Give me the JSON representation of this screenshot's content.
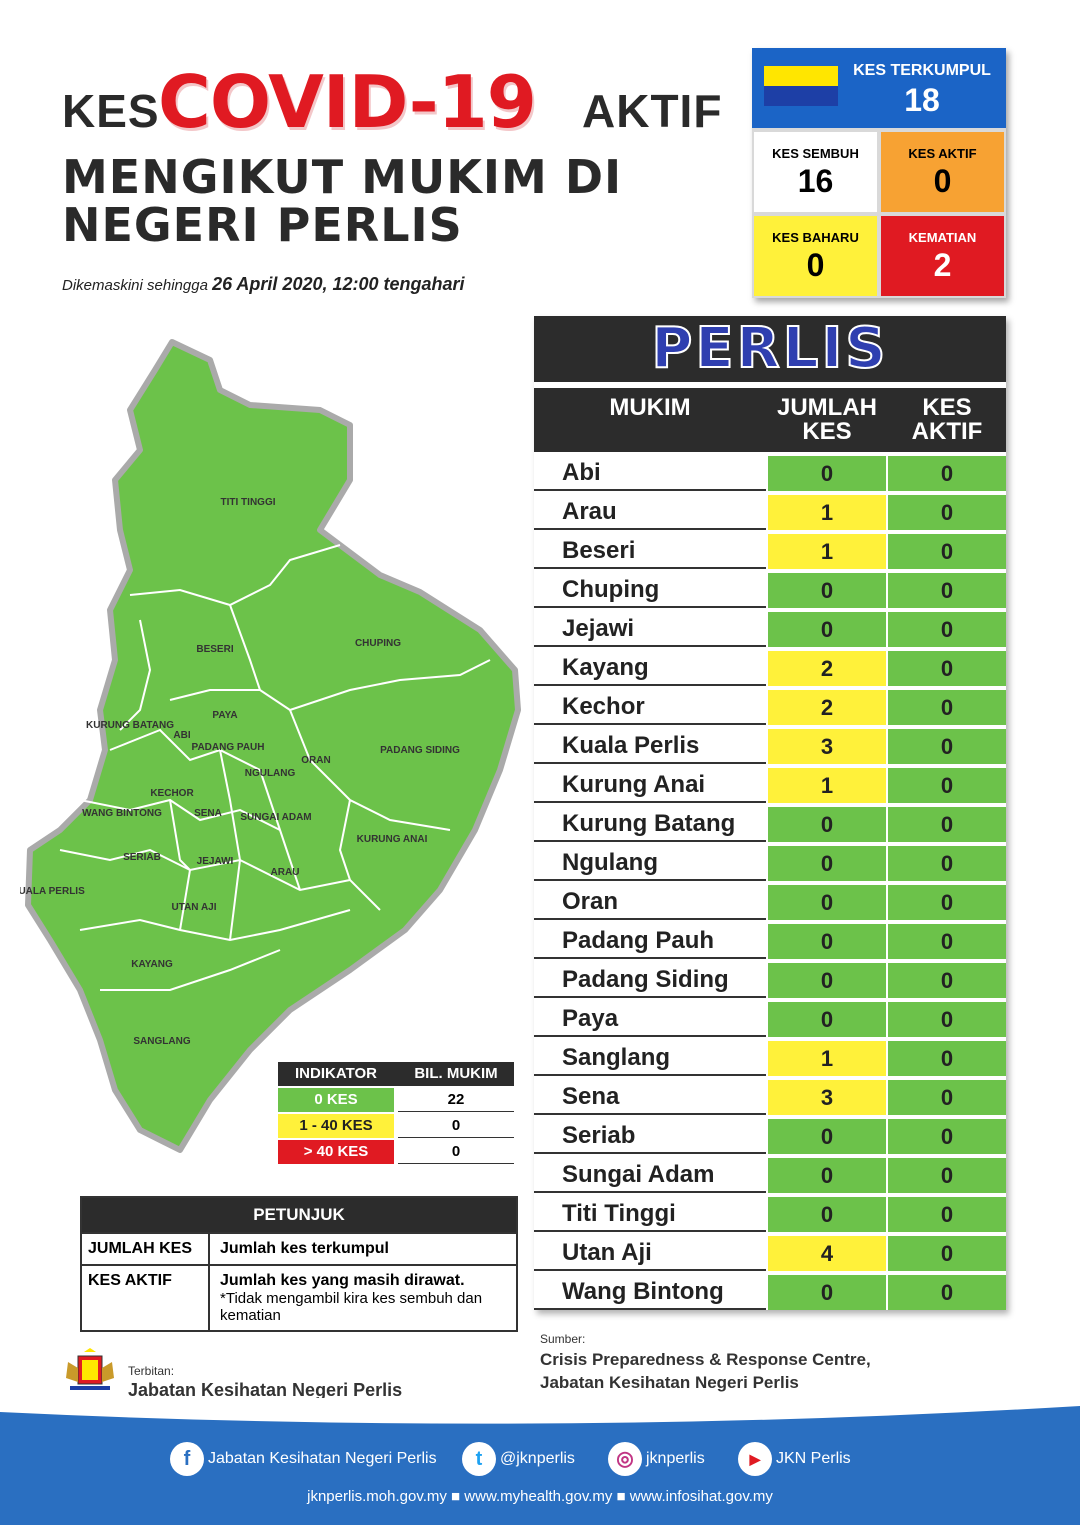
{
  "title": {
    "kes": "KES",
    "covid": "COVID-19",
    "aktif": "AKTIF",
    "line2": "MENGIKUT MUKIM DI",
    "line3": "NEGERI PERLIS"
  },
  "updated": {
    "prefix": "Dikemaskini sehingga",
    "date": "26 April 2020, 12:00 tengahari"
  },
  "stats": {
    "terkumpul": {
      "label": "KES TERKUMPUL",
      "value": "18"
    },
    "sembuh": {
      "label": "KES SEMBUH",
      "value": "16"
    },
    "aktif": {
      "label": "KES AKTIF",
      "value": "0"
    },
    "baharu": {
      "label": "KES BAHARU",
      "value": "0"
    },
    "kematian": {
      "label": "KEMATIAN",
      "value": "2"
    }
  },
  "table": {
    "title": "PERLIS",
    "col_mukim": "MUKIM",
    "col_jumlah": "JUMLAH KES",
    "col_aktif": "KES AKTIF",
    "rows": [
      {
        "mukim": "Abi",
        "jumlah": "0",
        "aktif": "0",
        "level": "green"
      },
      {
        "mukim": "Arau",
        "jumlah": "1",
        "aktif": "0",
        "level": "yellow"
      },
      {
        "mukim": "Beseri",
        "jumlah": "1",
        "aktif": "0",
        "level": "yellow"
      },
      {
        "mukim": "Chuping",
        "jumlah": "0",
        "aktif": "0",
        "level": "green"
      },
      {
        "mukim": "Jejawi",
        "jumlah": "0",
        "aktif": "0",
        "level": "green"
      },
      {
        "mukim": "Kayang",
        "jumlah": "2",
        "aktif": "0",
        "level": "yellow"
      },
      {
        "mukim": "Kechor",
        "jumlah": "2",
        "aktif": "0",
        "level": "yellow"
      },
      {
        "mukim": "Kuala Perlis",
        "jumlah": "3",
        "aktif": "0",
        "level": "yellow"
      },
      {
        "mukim": "Kurung Anai",
        "jumlah": "1",
        "aktif": "0",
        "level": "yellow"
      },
      {
        "mukim": "Kurung Batang",
        "jumlah": "0",
        "aktif": "0",
        "level": "green"
      },
      {
        "mukim": "Ngulang",
        "jumlah": "0",
        "aktif": "0",
        "level": "green"
      },
      {
        "mukim": "Oran",
        "jumlah": "0",
        "aktif": "0",
        "level": "green"
      },
      {
        "mukim": "Padang Pauh",
        "jumlah": "0",
        "aktif": "0",
        "level": "green"
      },
      {
        "mukim": "Padang Siding",
        "jumlah": "0",
        "aktif": "0",
        "level": "green"
      },
      {
        "mukim": "Paya",
        "jumlah": "0",
        "aktif": "0",
        "level": "green"
      },
      {
        "mukim": "Sanglang",
        "jumlah": "1",
        "aktif": "0",
        "level": "yellow"
      },
      {
        "mukim": "Sena",
        "jumlah": "3",
        "aktif": "0",
        "level": "yellow"
      },
      {
        "mukim": "Seriab",
        "jumlah": "0",
        "aktif": "0",
        "level": "green"
      },
      {
        "mukim": "Sungai Adam",
        "jumlah": "0",
        "aktif": "0",
        "level": "green"
      },
      {
        "mukim": "Titi Tinggi",
        "jumlah": "0",
        "aktif": "0",
        "level": "green"
      },
      {
        "mukim": "Utan Aji",
        "jumlah": "4",
        "aktif": "0",
        "level": "yellow"
      },
      {
        "mukim": "Wang Bintong",
        "jumlah": "0",
        "aktif": "0",
        "level": "green"
      }
    ]
  },
  "map_labels": [
    "TITI TINGGI",
    "BESERI",
    "CHUPING",
    "KURUNG BATANG",
    "ABI",
    "PAYA",
    "PADANG PAUH",
    "NGULANG",
    "ORAN",
    "PADANG SIDING",
    "KECHOR",
    "WANG BINTONG",
    "SENA",
    "SUNGAI ADAM",
    "SERIAB",
    "JEJAWI",
    "KURUNG ANAI",
    "ARAU",
    "KUALA PERLIS",
    "UTAN AJI",
    "KAYANG",
    "SANGLANG"
  ],
  "indicator": {
    "col1": "INDIKATOR",
    "col2": "BIL. MUKIM",
    "rows": [
      {
        "label": "0 KES",
        "value": "22",
        "color": "#6cc24a"
      },
      {
        "label": "1 - 40 KES",
        "value": "0",
        "color": "#fff13a"
      },
      {
        "label": "> 40 KES",
        "value": "0",
        "color": "#e01a22"
      }
    ]
  },
  "petunjuk": {
    "title": "PETUNJUK",
    "row1_key": "JUMLAH KES",
    "row1_val": "Jumlah kes terkumpul",
    "row2_key": "KES AKTIF",
    "row2_val": "Jumlah kes yang masih dirawat.",
    "row2_note": "*Tidak mengambil kira kes sembuh dan kematian"
  },
  "terbitan": {
    "label": "Terbitan:",
    "org": "Jabatan Kesihatan Negeri Perlis"
  },
  "sumber": {
    "label": "Sumber:",
    "line1": "Crisis Preparedness & Response Centre,",
    "line2": "Jabatan Kesihatan Negeri Perlis"
  },
  "footer": {
    "facebook": "Jabatan Kesihatan Negeri Perlis",
    "twitter": "@jknperlis",
    "instagram": "jknperlis",
    "youtube": "JKN Perlis",
    "links": "jknperlis.moh.gov.my ■ www.myhealth.gov.my ■ www.infosihat.gov.my"
  },
  "colors": {
    "green": "#6cc24a",
    "yellow": "#fff13a",
    "red": "#e01a22",
    "blue": "#1b64c6"
  }
}
